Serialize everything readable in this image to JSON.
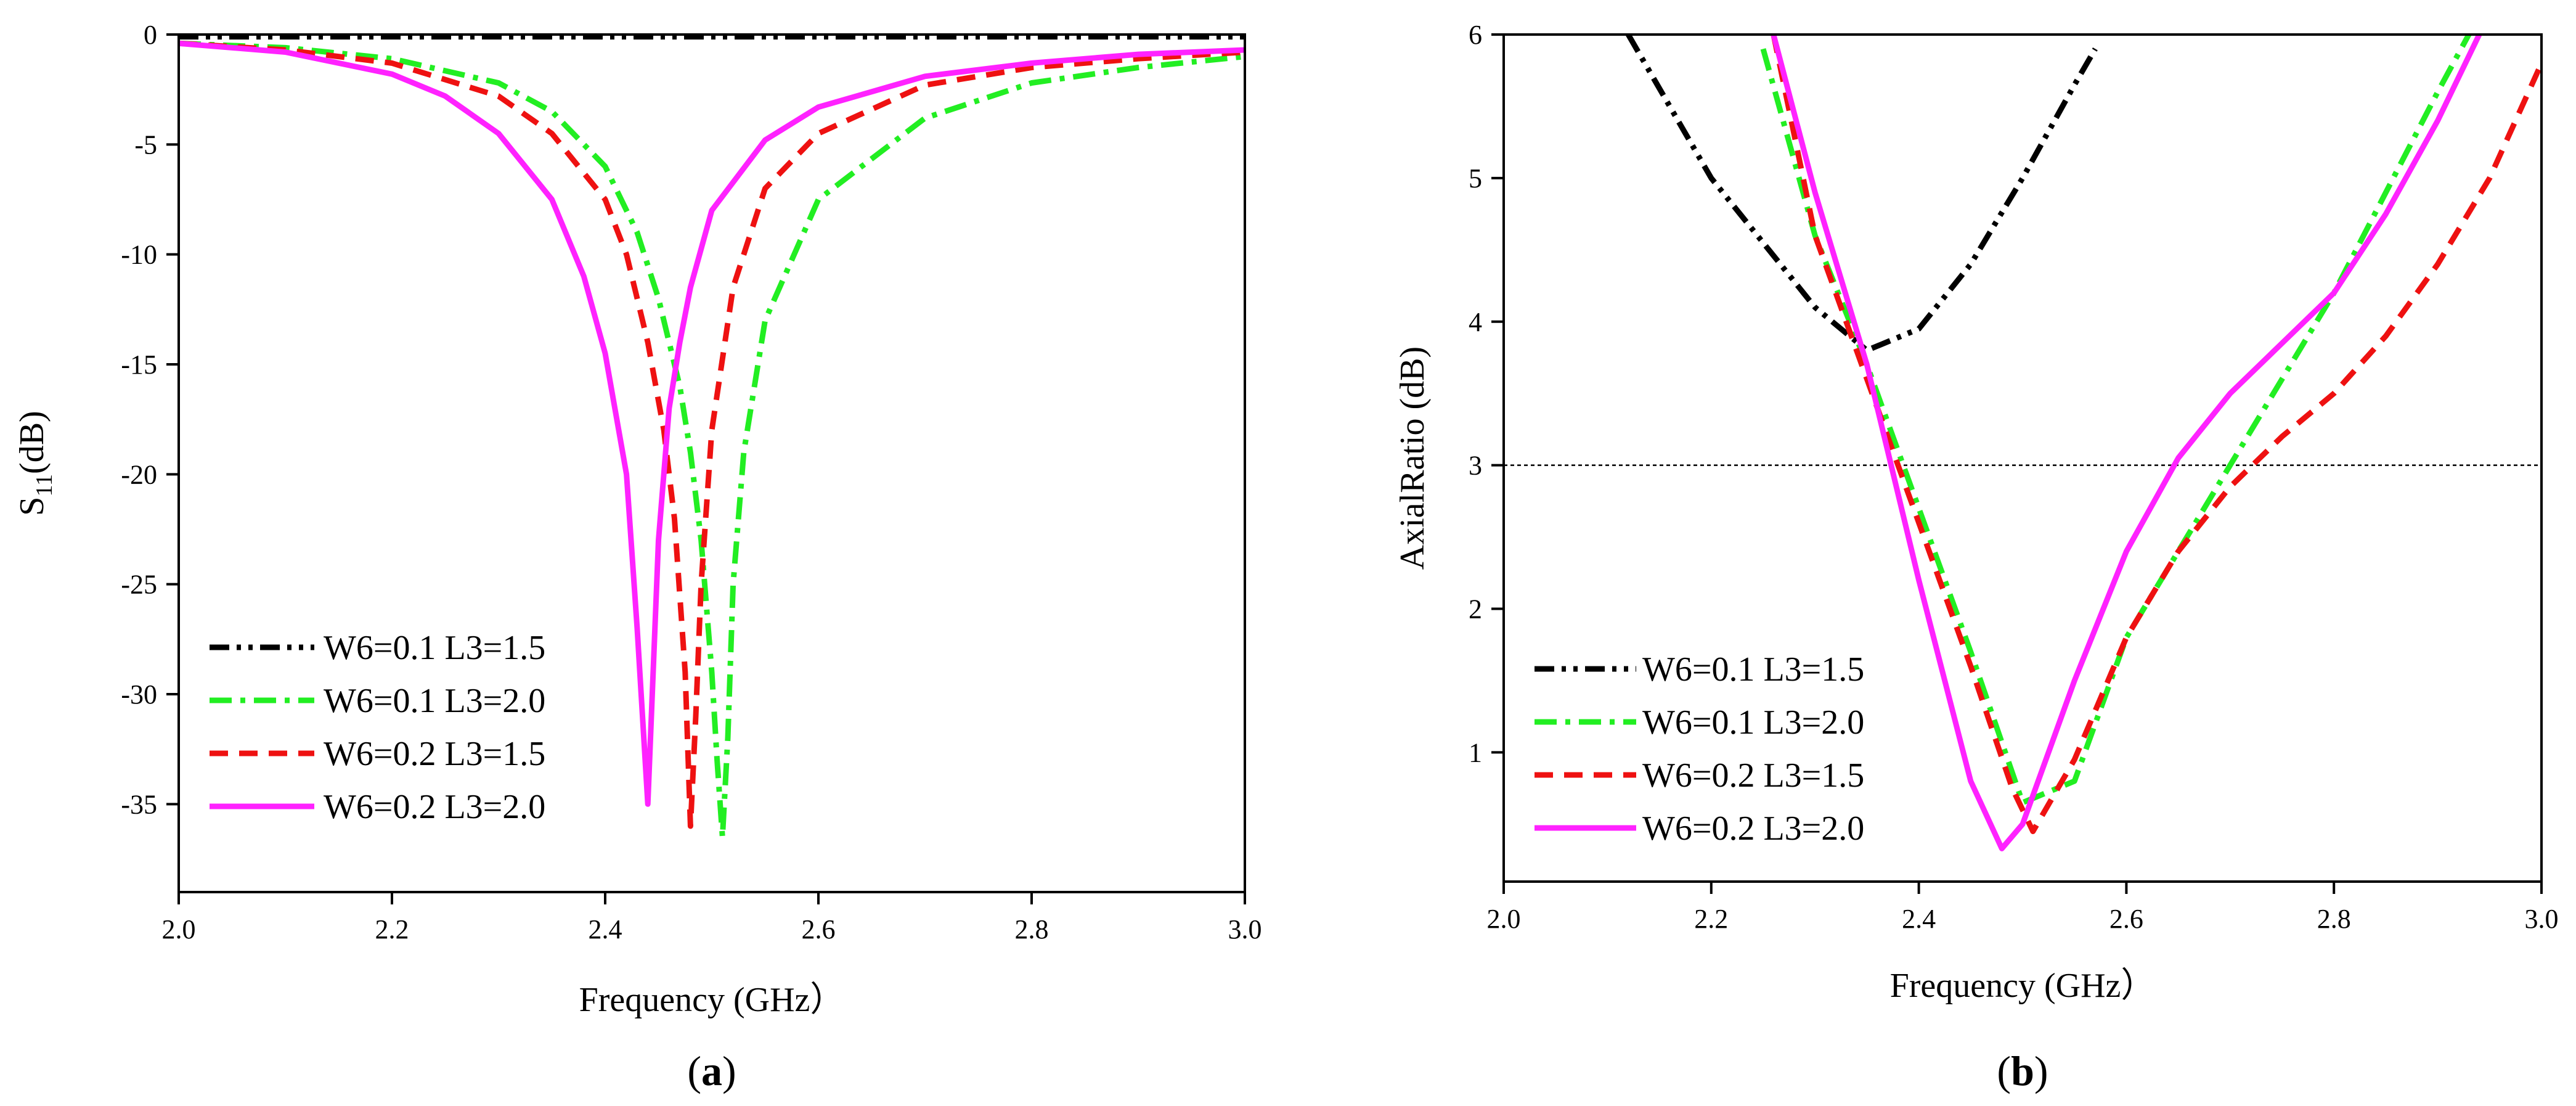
{
  "chart_data": [
    {
      "type": "line",
      "panel_label": "a",
      "xlabel": "Frequency (GHz）",
      "ylabel_main": "S",
      "ylabel_sub": "11",
      "ylabel_unit": "(dB)",
      "xlim": [
        2.0,
        3.0
      ],
      "ylim": [
        -39,
        0
      ],
      "xticks": [
        "2.0",
        "2.2",
        "2.4",
        "2.6",
        "2.8",
        "3.0"
      ],
      "yticks": [
        "0",
        "-5",
        "-10",
        "-15",
        "-20",
        "-25",
        "-30",
        "-35"
      ],
      "legend_position": "bottom-left",
      "series": [
        {
          "name": "W6=0.1 L3=1.5",
          "color": "#000000",
          "dash": "dash-dot-dot",
          "x": [
            2.0,
            3.0
          ],
          "y": [
            -0.1,
            -0.1
          ]
        },
        {
          "name": "W6=0.1 L3=2.0",
          "color": "#22ee22",
          "dash": "dash-dot",
          "x": [
            2.0,
            2.1,
            2.2,
            2.3,
            2.35,
            2.4,
            2.43,
            2.45,
            2.47,
            2.48,
            2.49,
            2.5,
            2.505,
            2.51,
            2.515,
            2.52,
            2.53,
            2.55,
            2.6,
            2.7,
            2.8,
            2.9,
            3.0
          ],
          "y": [
            -0.4,
            -0.6,
            -1.1,
            -2.2,
            -3.5,
            -6,
            -9,
            -12,
            -16,
            -19,
            -23,
            -29,
            -33,
            -36.5,
            -32,
            -25,
            -19,
            -13,
            -7.5,
            -3.8,
            -2.2,
            -1.5,
            -1.0
          ]
        },
        {
          "name": "W6=0.2 L3=1.5",
          "color": "#ee1111",
          "dash": "dash",
          "x": [
            2.0,
            2.1,
            2.2,
            2.3,
            2.35,
            2.4,
            2.42,
            2.44,
            2.455,
            2.465,
            2.475,
            2.48,
            2.485,
            2.49,
            2.5,
            2.52,
            2.55,
            2.6,
            2.7,
            2.8,
            2.9,
            3.0
          ],
          "y": [
            -0.4,
            -0.7,
            -1.3,
            -2.8,
            -4.5,
            -7.5,
            -10,
            -14,
            -18,
            -22,
            -29,
            -36,
            -31,
            -25,
            -18,
            -11.5,
            -7,
            -4.5,
            -2.3,
            -1.5,
            -1.1,
            -0.8
          ]
        },
        {
          "name": "W6=0.2 L3=2.0",
          "color": "#ff22ff",
          "dash": "solid",
          "x": [
            2.0,
            2.1,
            2.2,
            2.25,
            2.3,
            2.35,
            2.38,
            2.4,
            2.42,
            2.43,
            2.44,
            2.45,
            2.46,
            2.47,
            2.48,
            2.5,
            2.55,
            2.6,
            2.7,
            2.8,
            2.9,
            3.0
          ],
          "y": [
            -0.4,
            -0.8,
            -1.8,
            -2.8,
            -4.5,
            -7.5,
            -11,
            -14.5,
            -20,
            -27,
            -35,
            -23,
            -17,
            -14,
            -11.5,
            -8,
            -4.8,
            -3.3,
            -1.9,
            -1.3,
            -0.9,
            -0.7
          ]
        }
      ]
    },
    {
      "type": "line",
      "panel_label": "b",
      "xlabel": "Frequency (GHz）",
      "ylabel": "AxialRatio (dB)",
      "xlim": [
        2.0,
        3.0
      ],
      "ylim": [
        0.1,
        6.0
      ],
      "xticks": [
        "2.0",
        "2.2",
        "2.4",
        "2.6",
        "2.8",
        "3.0"
      ],
      "yticks": [
        "1",
        "2",
        "3",
        "4",
        "5",
        "6"
      ],
      "reference_line_y": 3,
      "legend_position": "bottom-left",
      "series": [
        {
          "name": "W6=0.1 L3=1.5",
          "color": "#000000",
          "dash": "dash-dot-dot",
          "x": [
            2.12,
            2.2,
            2.3,
            2.35,
            2.4,
            2.45,
            2.5,
            2.55,
            2.57
          ],
          "y": [
            6.0,
            5.0,
            4.1,
            3.8,
            3.95,
            4.4,
            5.0,
            5.65,
            5.9
          ]
        },
        {
          "name": "W6=0.1 L3=2.0",
          "color": "#22ee22",
          "dash": "dash-dot",
          "x": [
            2.25,
            2.3,
            2.35,
            2.4,
            2.45,
            2.5,
            2.55,
            2.6,
            2.65,
            2.7,
            2.75,
            2.8,
            2.85,
            2.9,
            2.93
          ],
          "y": [
            5.9,
            4.6,
            3.7,
            2.7,
            1.7,
            0.65,
            0.8,
            1.8,
            2.4,
            3.0,
            3.6,
            4.2,
            4.9,
            5.6,
            6.0
          ]
        },
        {
          "name": "W6=0.2 L3=1.5",
          "color": "#ee1111",
          "dash": "dash",
          "x": [
            2.26,
            2.3,
            2.35,
            2.4,
            2.45,
            2.49,
            2.51,
            2.55,
            2.6,
            2.65,
            2.7,
            2.75,
            2.8,
            2.85,
            2.9,
            2.95,
            3.0
          ],
          "y": [
            6.0,
            4.6,
            3.6,
            2.6,
            1.6,
            0.75,
            0.45,
            0.95,
            1.8,
            2.4,
            2.85,
            3.2,
            3.5,
            3.9,
            4.4,
            5.0,
            5.8
          ]
        },
        {
          "name": "W6=0.2 L3=2.0",
          "color": "#ff22ff",
          "dash": "solid",
          "x": [
            2.26,
            2.3,
            2.35,
            2.4,
            2.45,
            2.48,
            2.5,
            2.55,
            2.6,
            2.65,
            2.7,
            2.75,
            2.8,
            2.85,
            2.9,
            2.94
          ],
          "y": [
            6.0,
            4.9,
            3.7,
            2.2,
            0.8,
            0.33,
            0.5,
            1.5,
            2.4,
            3.05,
            3.5,
            3.85,
            4.2,
            4.75,
            5.4,
            6.0
          ]
        }
      ]
    }
  ]
}
